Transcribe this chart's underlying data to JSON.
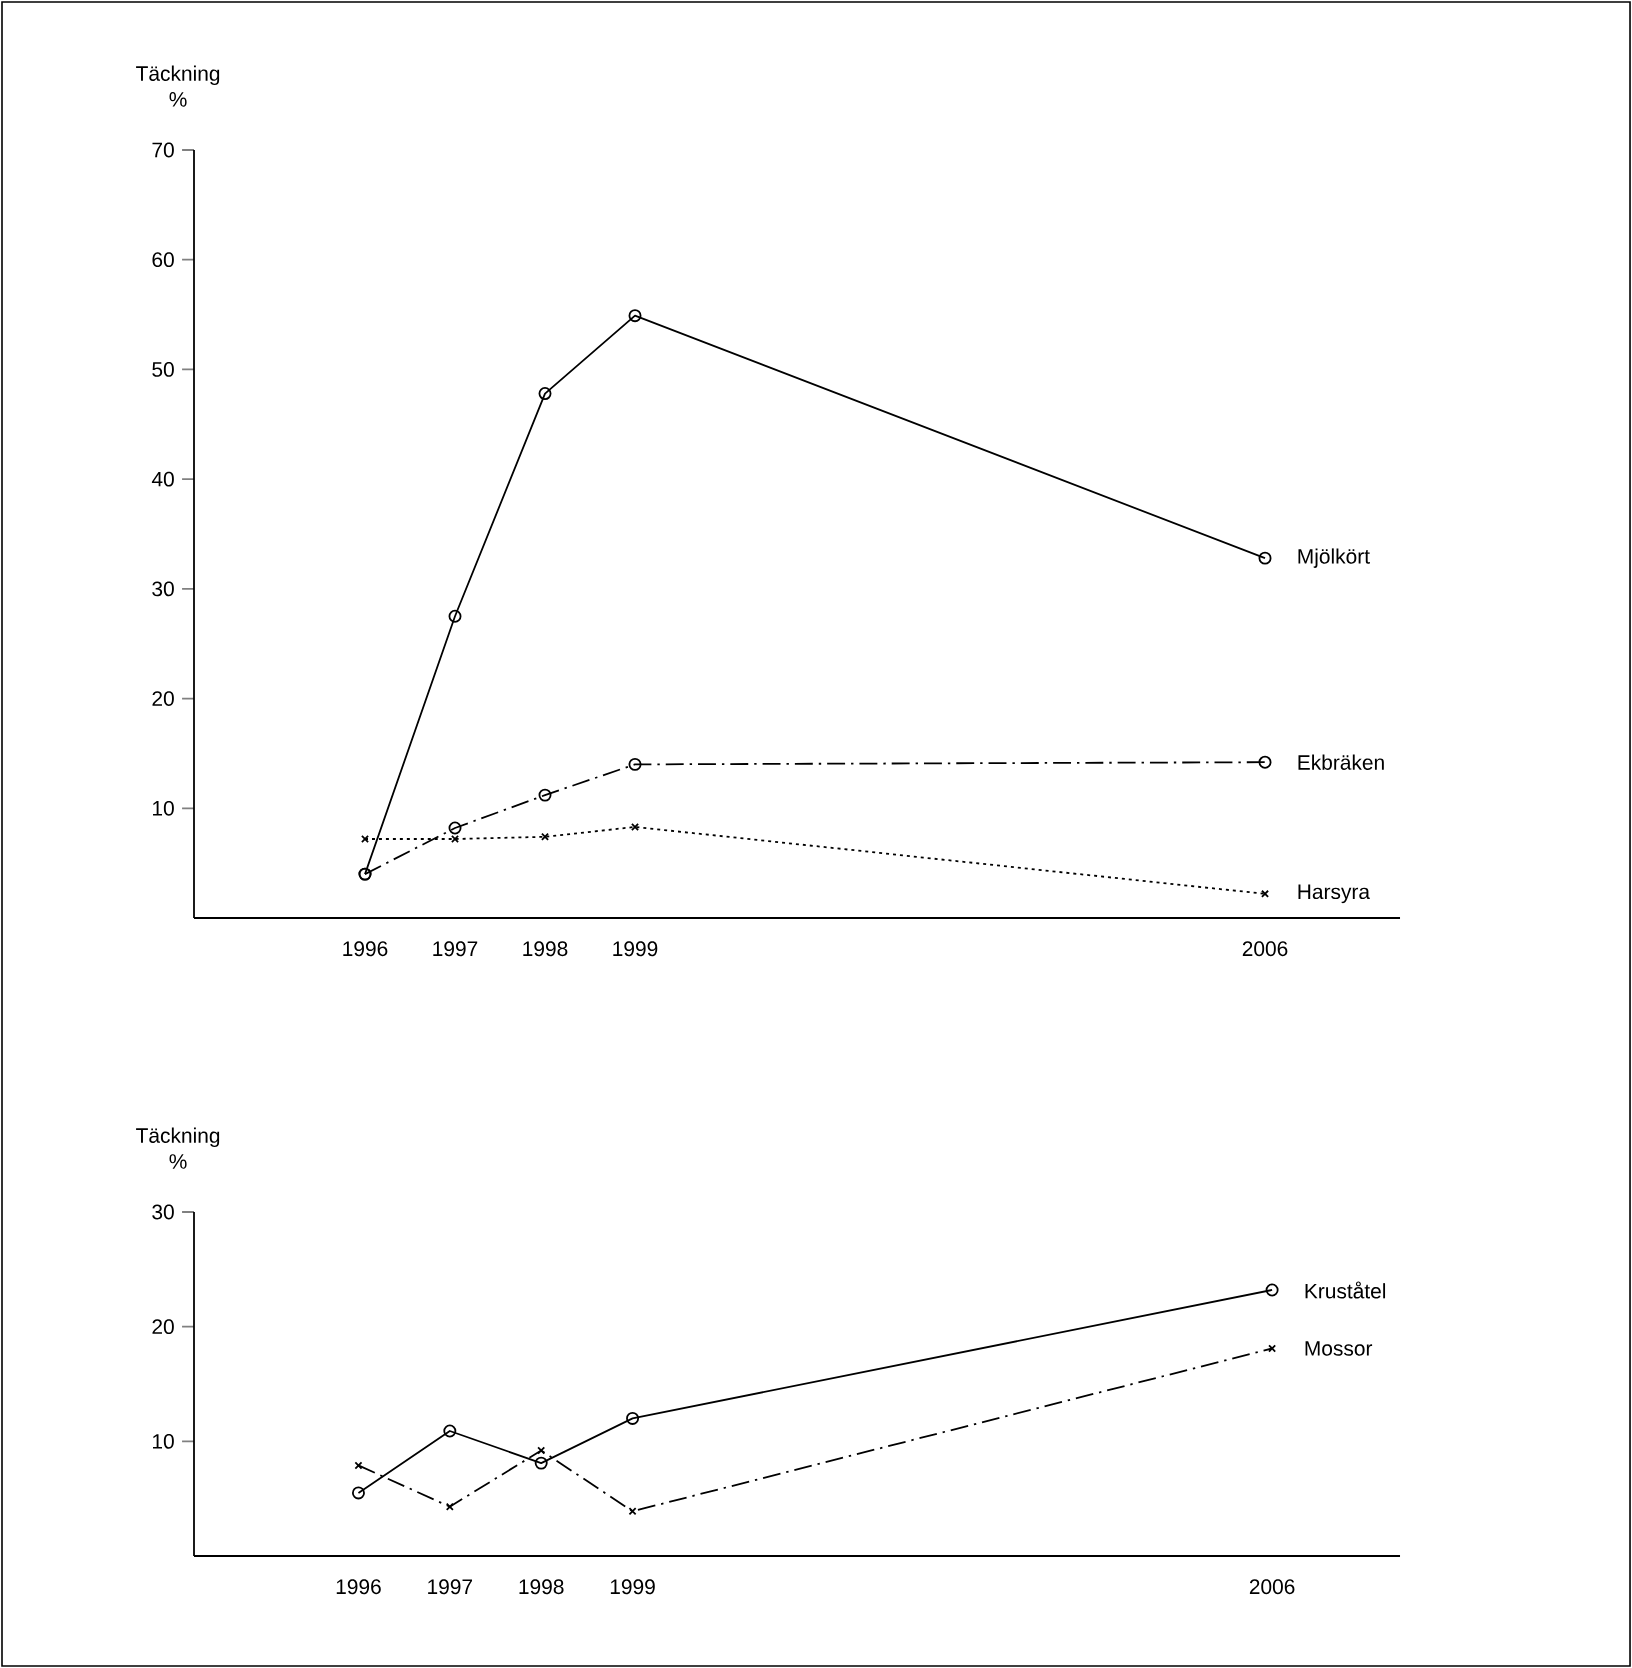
{
  "chart_data": [
    {
      "type": "line",
      "ylabel": "Täckning %",
      "xlim": [
        1994.1,
        2007.5
      ],
      "xticks": [
        1996,
        1997,
        1998,
        1999,
        2006
      ],
      "ylim": [
        0,
        70
      ],
      "yticks": [
        10,
        20,
        30,
        40,
        50,
        60,
        70
      ],
      "x": [
        1996,
        1997,
        1998,
        1999,
        2006
      ],
      "series": [
        {
          "name": "Mjölkört",
          "color": "#000000",
          "values": [
            4.0,
            27.5,
            47.8,
            54.9,
            32.8
          ],
          "marker": "circle",
          "line_style": "solid"
        },
        {
          "name": "Ekbräken",
          "color": "#000000",
          "values": [
            4.0,
            8.2,
            11.2,
            14.0,
            14.2
          ],
          "marker": "circle",
          "line_style": "dashed"
        },
        {
          "name": "Harsyra",
          "color": "#000000",
          "values": [
            7.2,
            7.2,
            7.4,
            8.3,
            2.2
          ],
          "marker": "cross",
          "line_style": "dotted"
        }
      ]
    },
    {
      "type": "line",
      "ylabel": "Täckning %",
      "xlim": [
        1994.2,
        2007.4
      ],
      "xticks": [
        1996,
        1997,
        1998,
        1999,
        2006
      ],
      "ylim": [
        0,
        30
      ],
      "yticks": [
        10,
        20,
        30
      ],
      "x": [
        1996,
        1997,
        1998,
        1999,
        2006
      ],
      "series": [
        {
          "name": "Kruståtel",
          "color": "#000000",
          "values": [
            5.5,
            10.9,
            8.1,
            12.0,
            23.2
          ],
          "marker": "circle",
          "line_style": "solid"
        },
        {
          "name": "Mossor",
          "color": "#000000",
          "values": [
            7.9,
            4.3,
            9.2,
            3.9,
            18.1
          ],
          "marker": "cross",
          "line_style": "dashed"
        }
      ]
    }
  ]
}
